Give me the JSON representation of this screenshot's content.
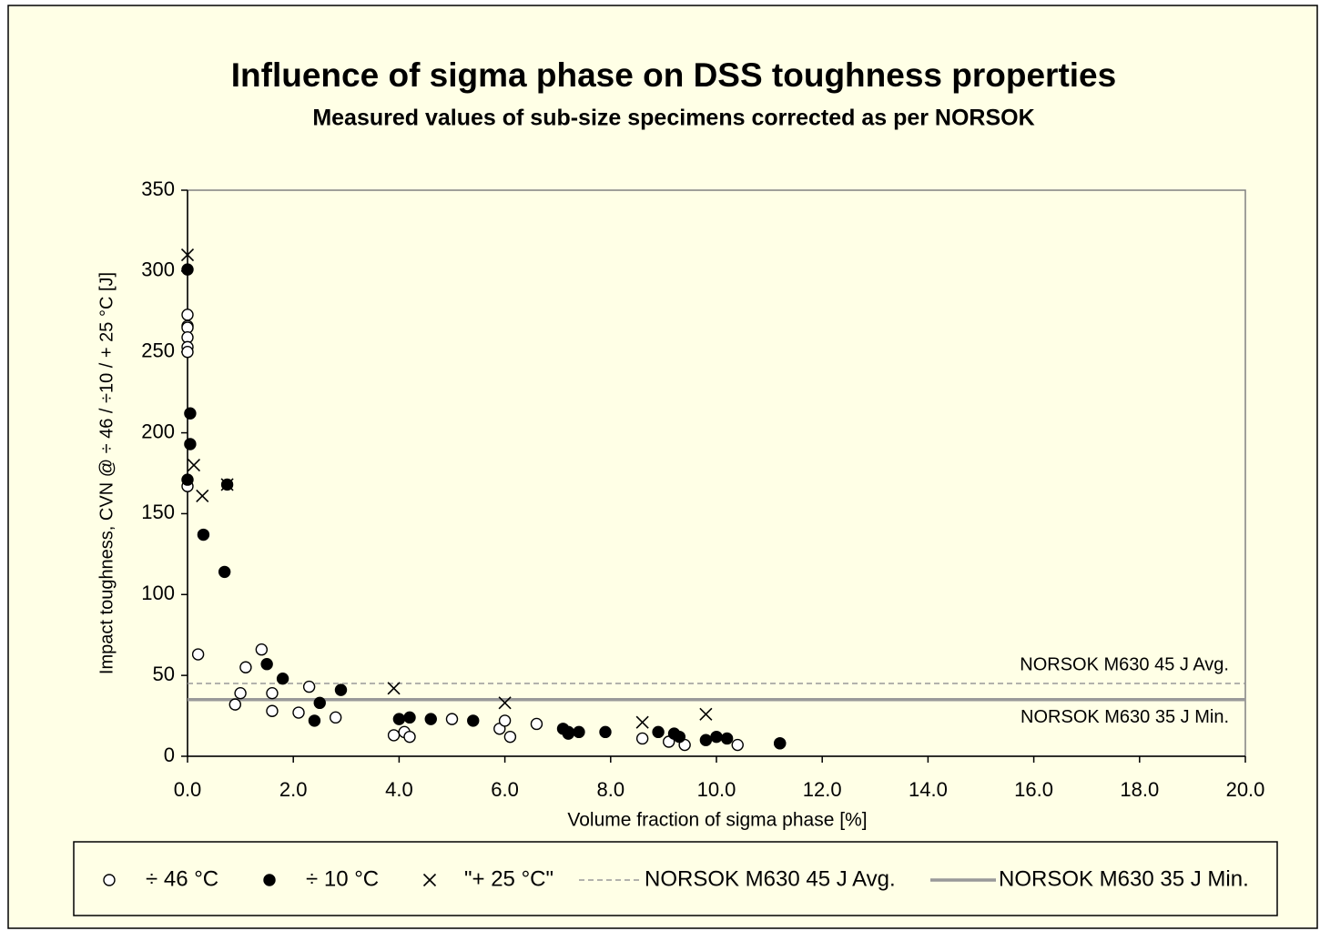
{
  "chart_data": {
    "type": "scatter",
    "title": "Influence of sigma phase on DSS toughness properties",
    "subtitle": "Measured values of sub-size specimens corrected as per NORSOK",
    "x_label": "Volume fraction of sigma phase [%]",
    "y_label": "Impact toughness, CVN @ ÷ 46 / ÷10 / + 25 °C [J]",
    "xlim": [
      0,
      20
    ],
    "ylim": [
      0,
      350
    ],
    "xticks": [
      {
        "value": 0,
        "label": "0.0"
      },
      {
        "value": 2,
        "label": "2.0"
      },
      {
        "value": 4,
        "label": "4.0"
      },
      {
        "value": 6,
        "label": "6.0"
      },
      {
        "value": 8,
        "label": "8.0"
      },
      {
        "value": 10,
        "label": "10.0"
      },
      {
        "value": 12,
        "label": "12.0"
      },
      {
        "value": 14,
        "label": "14.0"
      },
      {
        "value": 16,
        "label": "16.0"
      },
      {
        "value": 18,
        "label": "18.0"
      },
      {
        "value": 20,
        "label": "20.0"
      }
    ],
    "yticks": [
      0,
      50,
      100,
      150,
      200,
      250,
      300,
      350
    ],
    "series": [
      {
        "name": "÷ 46 °C",
        "marker": "open-circle",
        "color": "#000000",
        "x": [
          0,
          0,
          0,
          0,
          0,
          0,
          0,
          0.2,
          0.9,
          1.0,
          1.1,
          1.4,
          1.6,
          1.6,
          2.1,
          2.3,
          2.8,
          3.9,
          4.1,
          4.2,
          5.0,
          5.9,
          6.0,
          6.1,
          6.6,
          8.6,
          9.1,
          9.4,
          10.4,
          11.2
        ],
        "y": [
          273,
          266,
          265,
          259,
          253,
          250,
          167,
          63,
          32,
          39,
          55,
          66,
          39,
          28,
          27,
          43,
          24,
          13,
          15,
          12,
          23,
          17,
          22,
          12,
          20,
          11,
          9,
          7,
          7,
          8
        ]
      },
      {
        "name": "÷ 10 °C",
        "marker": "filled-circle",
        "color": "#000000",
        "x": [
          0,
          0.05,
          0.05,
          0,
          0.3,
          0.75,
          0.7,
          1.5,
          1.8,
          2.4,
          2.5,
          2.9,
          4.0,
          4.2,
          4.6,
          5.4,
          7.1,
          7.2,
          7.2,
          7.4,
          7.9,
          8.9,
          9.2,
          9.3,
          9.8,
          10.0,
          10.2,
          11.2
        ],
        "y": [
          301,
          212,
          193,
          171,
          137,
          168,
          114,
          57,
          48,
          22,
          33,
          41,
          23,
          24,
          23,
          22,
          17,
          14,
          15,
          15,
          15,
          15,
          14,
          12,
          10,
          12,
          11,
          8
        ]
      },
      {
        "name": "\"+ 25 °C\"",
        "marker": "cross",
        "color": "#000000",
        "x": [
          0,
          0.12,
          0.28,
          0.75,
          3.9,
          6.0,
          8.6,
          9.8
        ],
        "y": [
          310,
          180,
          161,
          168,
          42,
          33,
          21,
          26
        ]
      }
    ],
    "reference_lines": [
      {
        "name": "NORSOK M630 45 J Avg.",
        "value": 45,
        "color": "#999999",
        "dash": true
      },
      {
        "name": "NORSOK M630 35 J Min.",
        "value": 35,
        "color": "#999999",
        "dash": false
      }
    ]
  }
}
